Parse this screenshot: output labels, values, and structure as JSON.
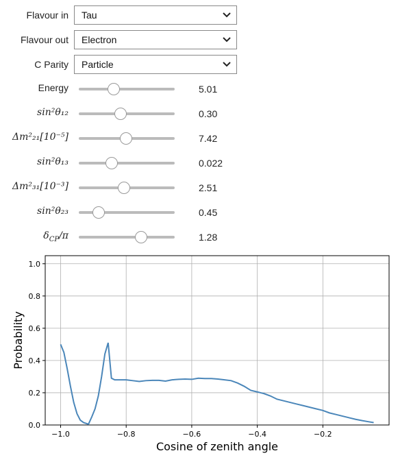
{
  "dropdowns": [
    {
      "label": "Flavour in",
      "value": "Tau"
    },
    {
      "label": "Flavour out",
      "value": "Electron"
    },
    {
      "label": "C Parity",
      "value": "Particle"
    }
  ],
  "sliders": [
    {
      "label": "Energy",
      "readout": "5.01"
    },
    {
      "label": "sin²θ₁₂",
      "readout": "0.30"
    },
    {
      "label": "Δm²₂₁[10⁻⁵]",
      "readout": "7.42"
    },
    {
      "label": "sin²θ₁₃",
      "readout": "0.022"
    },
    {
      "label": "Δm²₃₁[10⁻³]",
      "readout": "2.51"
    },
    {
      "label": "sin²θ₂₃",
      "readout": "0.45"
    },
    {
      "label": "δ",
      "label_sub": "CP",
      "label_tail": "/π",
      "readout": "1.28"
    }
  ],
  "chart_data": {
    "type": "line",
    "x_label": "Cosine of zenith angle",
    "y_label": "Probability",
    "x": [
      -1.0,
      -0.99,
      -0.98,
      -0.97,
      -0.96,
      -0.95,
      -0.94,
      -0.93,
      -0.915,
      -0.905,
      -0.895,
      -0.885,
      -0.875,
      -0.865,
      -0.855,
      -0.845,
      -0.835,
      -0.82,
      -0.8,
      -0.78,
      -0.76,
      -0.74,
      -0.72,
      -0.7,
      -0.68,
      -0.66,
      -0.64,
      -0.62,
      -0.6,
      -0.58,
      -0.56,
      -0.54,
      -0.52,
      -0.5,
      -0.48,
      -0.46,
      -0.44,
      -0.42,
      -0.4,
      -0.38,
      -0.36,
      -0.34,
      -0.32,
      -0.3,
      -0.28,
      -0.26,
      -0.24,
      -0.22,
      -0.2,
      -0.18,
      -0.16,
      -0.14,
      -0.12,
      -0.1,
      -0.08,
      -0.06,
      -0.045
    ],
    "values": [
      0.5,
      0.45,
      0.35,
      0.24,
      0.14,
      0.07,
      0.03,
      0.015,
      0.005,
      0.05,
      0.1,
      0.18,
      0.3,
      0.44,
      0.51,
      0.29,
      0.28,
      0.28,
      0.28,
      0.275,
      0.27,
      0.275,
      0.277,
      0.277,
      0.272,
      0.28,
      0.283,
      0.285,
      0.283,
      0.29,
      0.288,
      0.288,
      0.285,
      0.28,
      0.275,
      0.26,
      0.24,
      0.215,
      0.205,
      0.195,
      0.18,
      0.16,
      0.15,
      0.14,
      0.13,
      0.12,
      0.11,
      0.1,
      0.09,
      0.075,
      0.065,
      0.055,
      0.045,
      0.035,
      0.027,
      0.02,
      0.015
    ],
    "color": "#4a86b9",
    "xlim": [
      -1.047,
      0.002
    ],
    "ylim": [
      0,
      1.05
    ],
    "xticks": [
      {
        "value": -1.0,
        "label": "−1.0"
      },
      {
        "value": -0.8,
        "label": "−0.8"
      },
      {
        "value": -0.6,
        "label": "−0.6"
      },
      {
        "value": -0.4,
        "label": "−0.4"
      },
      {
        "value": -0.2,
        "label": "−0.2"
      }
    ],
    "yticks": [
      {
        "value": 0,
        "label": "0.0"
      },
      0.2,
      0.4,
      0.6,
      0.8,
      {
        "value": 1,
        "label": "1.0"
      }
    ],
    "grid": true
  }
}
